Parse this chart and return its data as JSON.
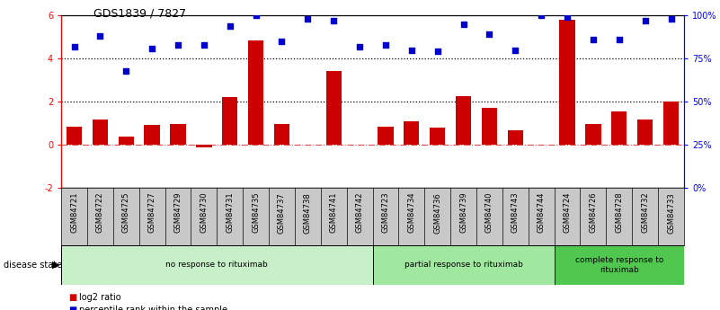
{
  "title": "GDS1839 / 7827",
  "samples": [
    "GSM84721",
    "GSM84722",
    "GSM84725",
    "GSM84727",
    "GSM84729",
    "GSM84730",
    "GSM84731",
    "GSM84735",
    "GSM84737",
    "GSM84738",
    "GSM84741",
    "GSM84742",
    "GSM84723",
    "GSM84734",
    "GSM84736",
    "GSM84739",
    "GSM84740",
    "GSM84743",
    "GSM84744",
    "GSM84724",
    "GSM84726",
    "GSM84728",
    "GSM84732",
    "GSM84733"
  ],
  "log2_ratio": [
    0.85,
    1.15,
    0.35,
    0.9,
    0.95,
    -0.12,
    2.2,
    4.85,
    0.95,
    0.0,
    3.4,
    0.0,
    0.85,
    1.1,
    0.8,
    2.25,
    1.7,
    0.65,
    0.0,
    5.8,
    0.95,
    1.55,
    1.15,
    2.0
  ],
  "percentile_pct": [
    82,
    88,
    68,
    81,
    83,
    83,
    94,
    100,
    85,
    98,
    97,
    82,
    83,
    80,
    79,
    95,
    89,
    80,
    100,
    99,
    86,
    86,
    97,
    98
  ],
  "groups": [
    {
      "label": "no response to rituximab",
      "start": 0,
      "end": 12,
      "color": "#c8f0c8"
    },
    {
      "label": "partial response to rituximab",
      "start": 12,
      "end": 19,
      "color": "#a0e8a0"
    },
    {
      "label": "complete response to\nrituximab",
      "start": 19,
      "end": 24,
      "color": "#50c850"
    }
  ],
  "bar_color": "#cc0000",
  "dot_color": "#0000cc",
  "ylim_left": [
    -2,
    6
  ],
  "ylim_right": [
    0,
    100
  ],
  "yticks_left": [
    -2,
    0,
    2,
    4,
    6
  ],
  "yticks_right": [
    0,
    25,
    50,
    75,
    100
  ],
  "hline_y": [
    2,
    4
  ],
  "zero_line_color": "#cc0000",
  "disease_state_label": "disease state",
  "legend_items": [
    {
      "label": "log2 ratio",
      "color": "#cc0000"
    },
    {
      "label": "percentile rank within the sample",
      "color": "#0000cc"
    }
  ],
  "label_bg_color": "#c8c8c8",
  "title_fontsize": 9,
  "axis_fontsize": 7,
  "label_fontsize": 6
}
